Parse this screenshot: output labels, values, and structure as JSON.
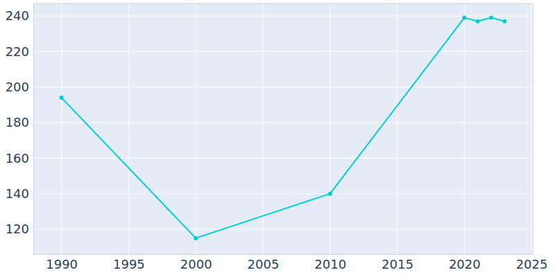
{
  "chart_data": {
    "type": "line",
    "x": [
      1990,
      2000,
      2010,
      2020,
      2021,
      2022,
      2023
    ],
    "values": [
      194,
      115,
      140,
      239,
      237,
      239,
      237
    ],
    "color": "#00ced1",
    "marker": "circle",
    "xlim": [
      1987.9,
      2025.1
    ],
    "xticks": [
      1990,
      1995,
      2000,
      2005,
      2010,
      2015,
      2020,
      2025
    ],
    "ylim": [
      106,
      247
    ],
    "yticks": [
      120,
      140,
      160,
      180,
      200,
      220,
      240
    ],
    "grid": true
  }
}
